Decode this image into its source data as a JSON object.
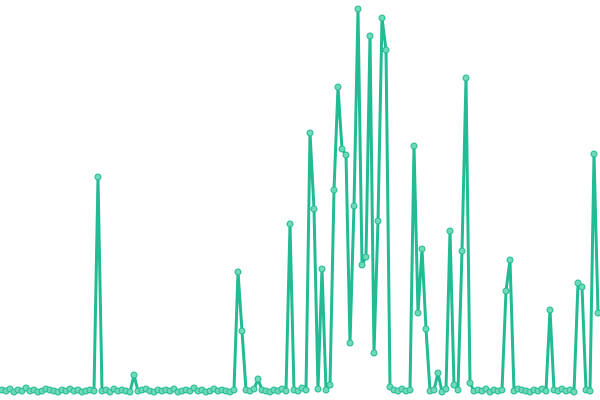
{
  "chart_data": {
    "type": "line",
    "color": "#22bb94",
    "marker_color": "#6fd9b8",
    "ylim": [
      0,
      390
    ],
    "values": [
      3,
      2,
      4,
      1,
      3,
      2,
      5,
      2,
      3,
      1,
      2,
      4,
      3,
      2,
      1,
      3,
      2,
      4,
      2,
      3,
      1,
      2,
      3,
      2,
      216,
      2,
      3,
      1,
      4,
      2,
      3,
      2,
      1,
      18,
      2,
      3,
      4,
      2,
      1,
      3,
      2,
      3,
      2,
      4,
      1,
      2,
      3,
      2,
      5,
      2,
      3,
      1,
      2,
      4,
      2,
      3,
      2,
      1,
      3,
      121,
      62,
      3,
      2,
      4,
      14,
      3,
      2,
      1,
      3,
      2,
      4,
      2,
      169,
      3,
      2,
      5,
      3,
      260,
      184,
      4,
      124,
      3,
      8,
      203,
      306,
      244,
      238,
      50,
      187,
      384,
      128,
      136,
      357,
      40,
      172,
      375,
      343,
      6,
      3,
      2,
      4,
      2,
      3,
      247,
      80,
      144,
      64,
      2,
      3,
      20,
      1,
      4,
      162,
      8,
      3,
      142,
      315,
      10,
      2,
      3,
      2,
      4,
      1,
      3,
      2,
      3,
      102,
      133,
      2,
      4,
      3,
      2,
      1,
      3,
      2,
      4,
      2,
      83,
      3,
      2,
      4,
      2,
      3,
      1,
      110,
      106,
      3,
      2,
      239,
      80
    ]
  }
}
